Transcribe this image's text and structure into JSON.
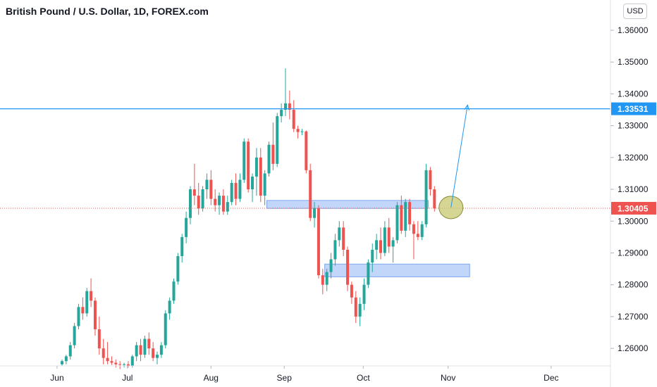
{
  "chart": {
    "title": "British Pound / U.S. Dollar, 1D, FOREX.com",
    "currency_button": "USD"
  },
  "colors": {
    "up": "#26a69a",
    "down": "#ef5350",
    "resistance_line": "#2196f3",
    "zone_fill": "#90b4f5",
    "circle_fill": "#c8c870",
    "price_line": "#ef5350"
  },
  "chart_data": {
    "type": "candlestick",
    "ylim": [
      1.2545,
      1.3695
    ],
    "y_ticks": [
      "1.36000",
      "1.35000",
      "1.34000",
      "1.33000",
      "1.32000",
      "1.31000",
      "1.30000",
      "1.29000",
      "1.28000",
      "1.27000",
      "1.26000"
    ],
    "x_ticks": [
      "Jun",
      "Jul",
      "Aug",
      "Sep",
      "Oct",
      "Nov",
      "Dec"
    ],
    "last_price_label": "1.30405",
    "last_price": 1.30405,
    "resistance_label": "1.33531",
    "resistance": 1.33531,
    "zones": [
      {
        "x_start": 50,
        "x_end": 88,
        "y_low": 1.304,
        "y_high": 1.3065
      },
      {
        "x_start": 64,
        "x_end": 98,
        "y_low": 1.2825,
        "y_high": 1.2865
      }
    ],
    "circle": {
      "x": 94,
      "y": 1.3043
    },
    "arrow": {
      "from_x": 94,
      "from_y": 1.3043,
      "to_x": 98,
      "to_y": 1.3365
    },
    "candles": [
      [
        1.255,
        1.2565,
        1.2545,
        1.256
      ],
      [
        1.256,
        1.258,
        1.255,
        1.2575
      ],
      [
        1.2575,
        1.262,
        1.2565,
        1.261
      ],
      [
        1.261,
        1.268,
        1.26,
        1.267
      ],
      [
        1.267,
        1.274,
        1.266,
        1.273
      ],
      [
        1.273,
        1.276,
        1.269,
        1.271
      ],
      [
        1.271,
        1.279,
        1.27,
        1.278
      ],
      [
        1.278,
        1.282,
        1.273,
        1.275
      ],
      [
        1.275,
        1.276,
        1.264,
        1.266
      ],
      [
        1.266,
        1.27,
        1.258,
        1.26
      ],
      [
        1.26,
        1.263,
        1.255,
        1.257
      ],
      [
        1.257,
        1.262,
        1.255,
        1.256
      ],
      [
        1.256,
        1.2575,
        1.2548,
        1.2555
      ],
      [
        1.2555,
        1.2565,
        1.254,
        1.255
      ],
      [
        1.255,
        1.256,
        1.2535,
        1.2548
      ],
      [
        1.2548,
        1.2555,
        1.254,
        1.255
      ],
      [
        1.255,
        1.256,
        1.254,
        1.2545
      ],
      [
        1.2545,
        1.258,
        1.254,
        1.2575
      ],
      [
        1.2575,
        1.262,
        1.256,
        1.261
      ],
      [
        1.261,
        1.263,
        1.256,
        1.258
      ],
      [
        1.258,
        1.264,
        1.257,
        1.263
      ],
      [
        1.263,
        1.265,
        1.258,
        1.26
      ],
      [
        1.26,
        1.262,
        1.256,
        1.257
      ],
      [
        1.257,
        1.259,
        1.255,
        1.258
      ],
      [
        1.258,
        1.262,
        1.257,
        1.261
      ],
      [
        1.261,
        1.272,
        1.26,
        1.271
      ],
      [
        1.271,
        1.276,
        1.269,
        1.275
      ],
      [
        1.275,
        1.282,
        1.274,
        1.281
      ],
      [
        1.281,
        1.29,
        1.28,
        1.289
      ],
      [
        1.289,
        1.296,
        1.287,
        1.295
      ],
      [
        1.295,
        1.303,
        1.293,
        1.301
      ],
      [
        1.301,
        1.311,
        1.299,
        1.31
      ],
      [
        1.31,
        1.318,
        1.305,
        1.308
      ],
      [
        1.308,
        1.312,
        1.302,
        1.304
      ],
      [
        1.304,
        1.311,
        1.303,
        1.31
      ],
      [
        1.31,
        1.315,
        1.307,
        1.313
      ],
      [
        1.313,
        1.316,
        1.305,
        1.307
      ],
      [
        1.307,
        1.31,
        1.303,
        1.305
      ],
      [
        1.305,
        1.309,
        1.302,
        1.308
      ],
      [
        1.308,
        1.31,
        1.302,
        1.303
      ],
      [
        1.303,
        1.308,
        1.302,
        1.306
      ],
      [
        1.306,
        1.313,
        1.305,
        1.312
      ],
      [
        1.312,
        1.315,
        1.305,
        1.307
      ],
      [
        1.307,
        1.315,
        1.306,
        1.313
      ],
      [
        1.313,
        1.326,
        1.312,
        1.325
      ],
      [
        1.325,
        1.326,
        1.309,
        1.31
      ],
      [
        1.31,
        1.315,
        1.306,
        1.314
      ],
      [
        1.314,
        1.323,
        1.308,
        1.32
      ],
      [
        1.32,
        1.323,
        1.306,
        1.308
      ],
      [
        1.308,
        1.316,
        1.305,
        1.315
      ],
      [
        1.315,
        1.325,
        1.314,
        1.324
      ],
      [
        1.324,
        1.331,
        1.316,
        1.318
      ],
      [
        1.318,
        1.334,
        1.317,
        1.333
      ],
      [
        1.333,
        1.337,
        1.331,
        1.335
      ],
      [
        1.335,
        1.348,
        1.333,
        1.337
      ],
      [
        1.337,
        1.341,
        1.332,
        1.335
      ],
      [
        1.335,
        1.338,
        1.328,
        1.329
      ],
      [
        1.329,
        1.33,
        1.326,
        1.328
      ],
      [
        1.328,
        1.329,
        1.327,
        1.3282
      ],
      [
        1.3282,
        1.3285,
        1.315,
        1.316
      ],
      [
        1.316,
        1.318,
        1.3,
        1.301
      ],
      [
        1.301,
        1.306,
        1.298,
        1.304
      ],
      [
        1.304,
        1.305,
        1.282,
        1.283
      ],
      [
        1.283,
        1.285,
        1.277,
        1.28
      ],
      [
        1.28,
        1.285,
        1.278,
        1.284
      ],
      [
        1.284,
        1.29,
        1.282,
        1.288
      ],
      [
        1.288,
        1.296,
        1.286,
        1.294
      ],
      [
        1.294,
        1.3,
        1.292,
        1.298
      ],
      [
        1.298,
        1.3,
        1.289,
        1.291
      ],
      [
        1.291,
        1.292,
        1.278,
        1.28
      ],
      [
        1.28,
        1.281,
        1.274,
        1.276
      ],
      [
        1.276,
        1.278,
        1.268,
        1.27
      ],
      [
        1.27,
        1.276,
        1.267,
        1.274
      ],
      [
        1.274,
        1.282,
        1.272,
        1.28
      ],
      [
        1.28,
        1.288,
        1.279,
        1.287
      ],
      [
        1.287,
        1.293,
        1.284,
        1.291
      ],
      [
        1.291,
        1.296,
        1.288,
        1.294
      ],
      [
        1.294,
        1.298,
        1.288,
        1.29
      ],
      [
        1.29,
        1.3,
        1.289,
        1.298
      ],
      [
        1.298,
        1.301,
        1.29,
        1.292
      ],
      [
        1.292,
        1.295,
        1.287,
        1.294
      ],
      [
        1.294,
        1.306,
        1.293,
        1.305
      ],
      [
        1.305,
        1.308,
        1.296,
        1.297
      ],
      [
        1.297,
        1.307,
        1.295,
        1.306
      ],
      [
        1.306,
        1.307,
        1.297,
        1.299
      ],
      [
        1.299,
        1.3,
        1.288,
        1.296
      ],
      [
        1.296,
        1.3,
        1.294,
        1.295
      ],
      [
        1.295,
        1.3,
        1.294,
        1.299
      ],
      [
        1.299,
        1.318,
        1.298,
        1.316
      ],
      [
        1.316,
        1.317,
        1.308,
        1.31
      ],
      [
        1.31,
        1.311,
        1.303,
        1.304
      ]
    ]
  }
}
